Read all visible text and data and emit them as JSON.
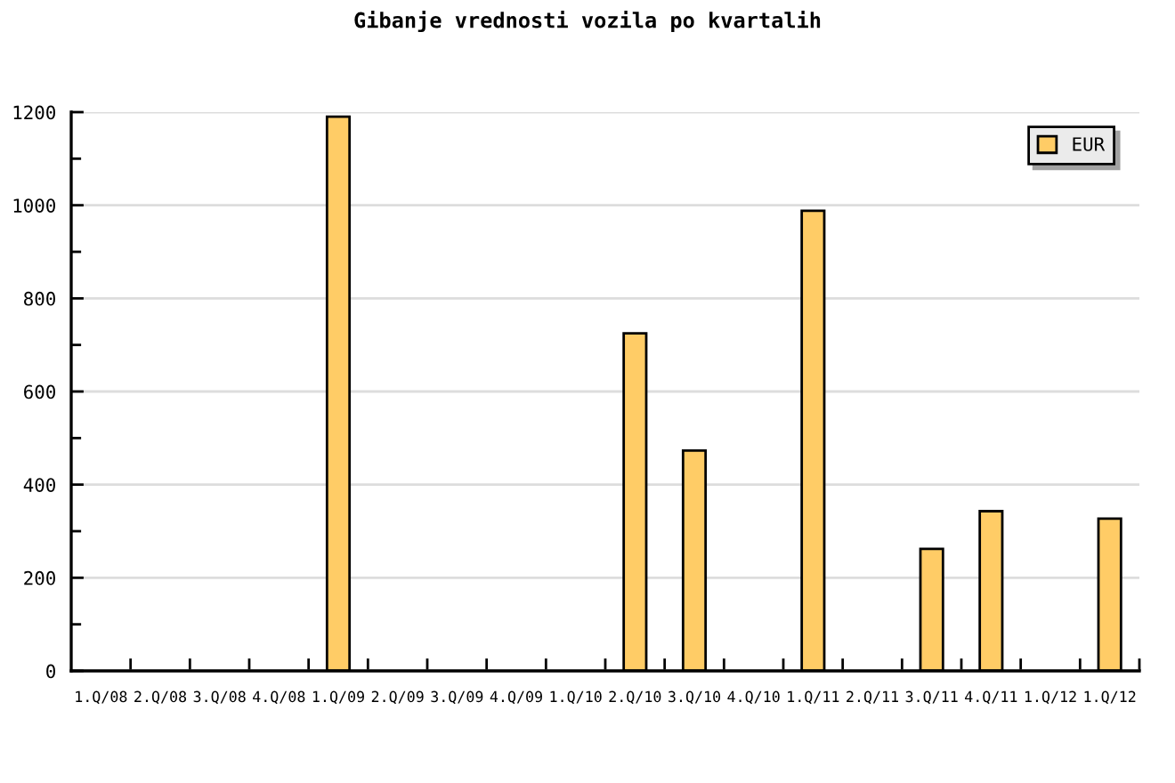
{
  "chart_data": {
    "type": "bar",
    "title": "Gibanje vrednosti vozila po kvartalih",
    "categories": [
      "1.Q/08",
      "2.Q/08",
      "3.Q/08",
      "4.Q/08",
      "1.Q/09",
      "2.Q/09",
      "3.Q/09",
      "4.Q/09",
      "1.Q/10",
      "2.Q/10",
      "3.Q/10",
      "4.Q/10",
      "1.Q/11",
      "2.Q/11",
      "3.Q/11",
      "4.Q/11",
      "1.Q/12",
      "1.Q/12"
    ],
    "series": [
      {
        "name": "EUR",
        "color": "#ffcc66",
        "values": [
          null,
          null,
          null,
          null,
          1190,
          null,
          null,
          null,
          null,
          725,
          473,
          null,
          988,
          null,
          262,
          343,
          null,
          327
        ]
      }
    ],
    "ylim": [
      0,
      1200
    ],
    "yticks": [
      0,
      {
        "value": 100,
        "label": null
      },
      200,
      {
        "value": 300,
        "label": null
      },
      400,
      {
        "value": 500,
        "label": null
      },
      600,
      {
        "value": 700,
        "label": null
      },
      800,
      {
        "value": 900,
        "label": null
      },
      1000,
      {
        "value": 1100,
        "label": null
      },
      1200
    ],
    "grid": "y",
    "legend": "top right"
  }
}
